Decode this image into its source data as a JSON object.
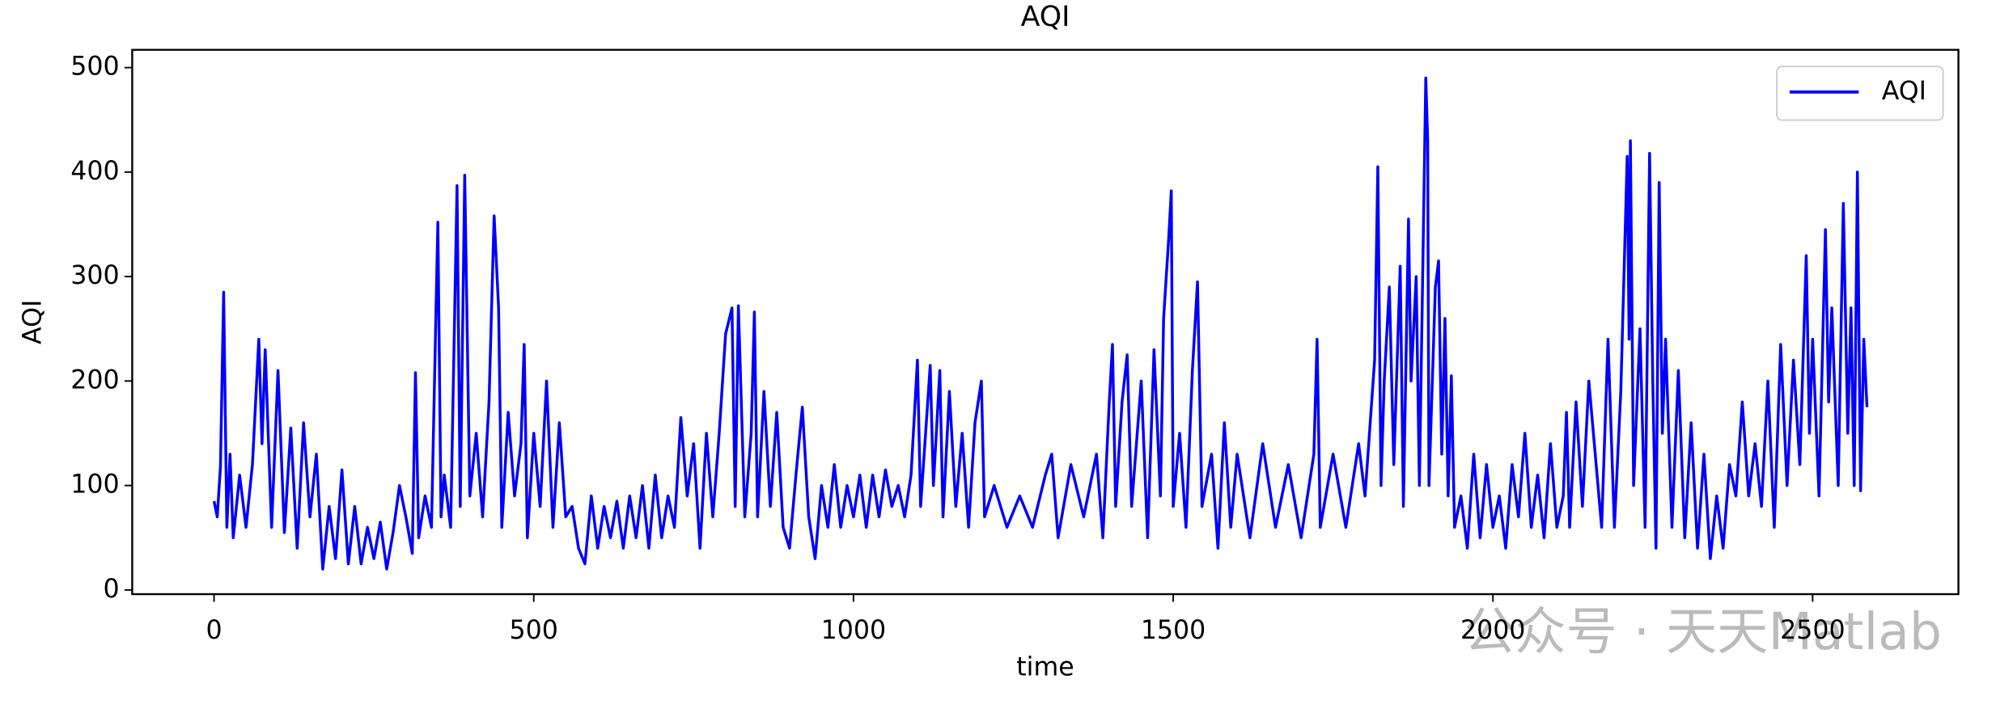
{
  "chart_data": {
    "type": "line",
    "title": "AQI",
    "x_label": "time",
    "y_label": "AQI",
    "xlim": [
      -128,
      2728
    ],
    "ylim": [
      -4,
      517
    ],
    "xticks": [
      0,
      500,
      1000,
      1500,
      2000,
      2500
    ],
    "yticks": [
      0,
      100,
      200,
      300,
      400,
      500
    ],
    "legend": "upper right",
    "watermark": "公众号 · 天天Matlab",
    "series": [
      {
        "name": "AQI",
        "color": "#0000ff",
        "x": [
          0,
          5,
          10,
          15,
          20,
          25,
          30,
          40,
          50,
          60,
          70,
          75,
          80,
          90,
          100,
          110,
          120,
          130,
          140,
          150,
          160,
          170,
          180,
          190,
          200,
          210,
          220,
          230,
          240,
          250,
          260,
          270,
          280,
          290,
          300,
          310,
          315,
          320,
          330,
          340,
          350,
          355,
          360,
          370,
          380,
          385,
          392,
          400,
          410,
          420,
          430,
          438,
          445,
          450,
          460,
          470,
          480,
          485,
          490,
          500,
          510,
          520,
          530,
          540,
          550,
          560,
          570,
          580,
          590,
          600,
          610,
          620,
          630,
          640,
          650,
          660,
          670,
          680,
          690,
          700,
          710,
          720,
          730,
          740,
          750,
          760,
          770,
          780,
          790,
          800,
          810,
          815,
          820,
          830,
          840,
          845,
          850,
          860,
          870,
          880,
          890,
          900,
          910,
          920,
          930,
          940,
          950,
          960,
          970,
          980,
          990,
          1000,
          1010,
          1020,
          1030,
          1040,
          1050,
          1060,
          1070,
          1080,
          1090,
          1100,
          1105,
          1120,
          1125,
          1135,
          1140,
          1150,
          1160,
          1170,
          1180,
          1190,
          1200,
          1205,
          1220,
          1240,
          1260,
          1280,
          1300,
          1310,
          1320,
          1340,
          1360,
          1380,
          1390,
          1400,
          1405,
          1410,
          1420,
          1428,
          1435,
          1450,
          1460,
          1470,
          1480,
          1485,
          1493,
          1497,
          1500,
          1510,
          1520,
          1530,
          1538,
          1545,
          1560,
          1570,
          1580,
          1590,
          1600,
          1620,
          1640,
          1660,
          1680,
          1700,
          1720,
          1725,
          1730,
          1750,
          1770,
          1790,
          1800,
          1815,
          1820,
          1825,
          1830,
          1838,
          1845,
          1855,
          1860,
          1868,
          1872,
          1880,
          1885,
          1895,
          1898,
          1900,
          1910,
          1915,
          1920,
          1925,
          1930,
          1935,
          1940,
          1950,
          1960,
          1970,
          1980,
          1990,
          2000,
          2010,
          2020,
          2030,
          2040,
          2050,
          2060,
          2070,
          2080,
          2090,
          2100,
          2110,
          2115,
          2120,
          2130,
          2140,
          2150,
          2160,
          2170,
          2180,
          2190,
          2200,
          2210,
          2213,
          2215,
          2220,
          2230,
          2238,
          2245,
          2250,
          2255,
          2260,
          2265,
          2270,
          2280,
          2290,
          2300,
          2310,
          2320,
          2330,
          2340,
          2350,
          2360,
          2370,
          2380,
          2390,
          2400,
          2410,
          2420,
          2430,
          2440,
          2450,
          2460,
          2470,
          2480,
          2490,
          2495,
          2500,
          2510,
          2520,
          2525,
          2530,
          2540,
          2548,
          2555,
          2560,
          2565,
          2570,
          2575,
          2580,
          2585
        ],
        "values": [
          85,
          70,
          118,
          285,
          60,
          130,
          50,
          110,
          60,
          120,
          240,
          140,
          230,
          60,
          210,
          55,
          155,
          40,
          160,
          70,
          130,
          20,
          80,
          30,
          115,
          25,
          80,
          25,
          60,
          30,
          65,
          20,
          55,
          100,
          70,
          35,
          208,
          50,
          90,
          60,
          352,
          70,
          110,
          60,
          387,
          80,
          397,
          90,
          150,
          70,
          180,
          358,
          270,
          60,
          170,
          90,
          140,
          235,
          50,
          150,
          80,
          200,
          60,
          160,
          70,
          80,
          40,
          25,
          90,
          40,
          80,
          50,
          85,
          40,
          90,
          50,
          100,
          40,
          110,
          50,
          90,
          60,
          165,
          90,
          140,
          40,
          150,
          70,
          150,
          245,
          270,
          80,
          272,
          70,
          150,
          266,
          70,
          190,
          80,
          170,
          60,
          40,
          110,
          175,
          70,
          30,
          100,
          60,
          120,
          60,
          100,
          70,
          110,
          60,
          110,
          70,
          115,
          80,
          100,
          70,
          110,
          220,
          80,
          215,
          100,
          210,
          70,
          190,
          80,
          150,
          60,
          160,
          200,
          70,
          100,
          60,
          90,
          60,
          110,
          130,
          50,
          120,
          70,
          130,
          50,
          180,
          235,
          80,
          180,
          225,
          80,
          200,
          50,
          230,
          90,
          260,
          337,
          382,
          80,
          150,
          60,
          210,
          295,
          80,
          130,
          40,
          160,
          60,
          130,
          50,
          140,
          60,
          120,
          50,
          130,
          240,
          60,
          130,
          60,
          140,
          90,
          220,
          405,
          100,
          200,
          290,
          120,
          310,
          80,
          355,
          200,
          300,
          100,
          490,
          430,
          100,
          290,
          315,
          130,
          260,
          90,
          205,
          60,
          90,
          40,
          130,
          50,
          120,
          60,
          90,
          40,
          120,
          70,
          150,
          60,
          110,
          50,
          140,
          60,
          90,
          170,
          60,
          180,
          80,
          200,
          130,
          60,
          240,
          60,
          190,
          415,
          240,
          430,
          100,
          250,
          60,
          418,
          200,
          40,
          390,
          150,
          240,
          60,
          210,
          50,
          160,
          40,
          130,
          30,
          90,
          40,
          120,
          90,
          180,
          90,
          140,
          80,
          200,
          60,
          235,
          100,
          220,
          120,
          320,
          150,
          240,
          90,
          345,
          180,
          270,
          100,
          370,
          150,
          270,
          100,
          400,
          95,
          240,
          175
        ]
      }
    ]
  }
}
